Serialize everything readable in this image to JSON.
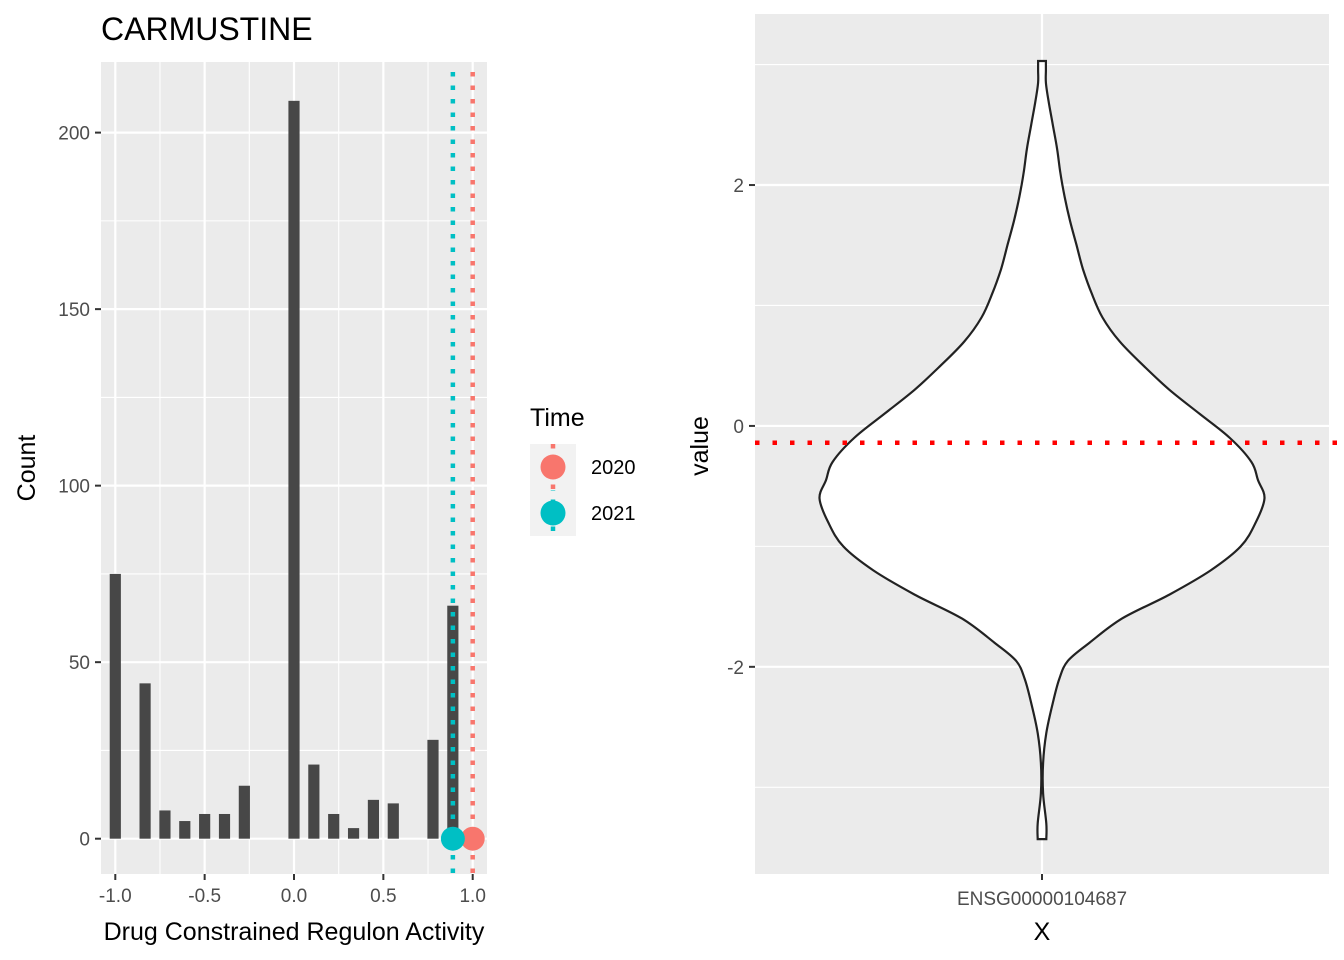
{
  "chart_data": [
    {
      "type": "bar",
      "title": "CARMUSTINE",
      "xlabel": "Drug Constrained Regulon Activity",
      "ylabel": "Count",
      "xlim": [
        -1.08,
        1.08
      ],
      "ylim": [
        -10,
        220
      ],
      "xticks": [
        -1.0,
        -0.5,
        0.0,
        0.5,
        1.0
      ],
      "xtick_labels": [
        "-1.0",
        "-0.5",
        "0.0",
        "0.5",
        "1.0"
      ],
      "yticks": [
        0,
        50,
        100,
        150,
        200
      ],
      "ytick_labels": [
        "0",
        "50",
        "100",
        "150",
        "200"
      ],
      "grid": true,
      "bar_color": "#474747",
      "bar_width": 0.0625,
      "x": [
        -1.0,
        -0.8667,
        -0.7333,
        -0.6,
        -0.4667,
        -0.3333,
        -0.2,
        -0.0667,
        0.0667,
        0.2,
        0.3333,
        0.4667,
        0.6,
        0.7333,
        0.8667,
        1.0
      ],
      "bars_x": [
        -1.0,
        -0.8333,
        -0.7222,
        -0.6111,
        -0.5,
        -0.3889,
        -0.2778,
        0.0,
        0.1111,
        0.2222,
        0.3333,
        0.4444,
        0.5556,
        0.6667,
        0.7778,
        0.8889,
        1.0
      ],
      "bars_y": [
        75,
        44,
        8,
        5,
        7,
        7,
        15,
        209,
        21,
        7,
        3,
        11,
        10,
        0,
        28,
        66,
        0
      ],
      "legend": {
        "title": "Time",
        "placement": "right",
        "entries": [
          {
            "label": "2020",
            "color": "#F8766D"
          },
          {
            "label": "2021",
            "color": "#00BFC4"
          }
        ]
      },
      "markers": [
        {
          "series": "2020",
          "x": 1.0,
          "y": 0,
          "color": "#F8766D"
        },
        {
          "series": "2021",
          "x": 0.889,
          "y": 0,
          "color": "#00BFC4"
        }
      ],
      "vlines": [
        {
          "series": "2020",
          "x": 1.0,
          "color": "#F8766D",
          "style": "dotted"
        },
        {
          "series": "2021",
          "x": 0.889,
          "color": "#00BFC4",
          "style": "dotted"
        }
      ]
    },
    {
      "type": "violin",
      "xlabel": "X",
      "ylabel": "value",
      "category": "ENSG00000104687",
      "ylim": [
        -3.72,
        3.42
      ],
      "yticks": [
        -2,
        0,
        2
      ],
      "ytick_labels": [
        "-2",
        "0",
        "2"
      ],
      "grid": true,
      "hline": {
        "y": -0.14,
        "color": "#FF0000",
        "style": "dotted"
      },
      "violin_range": [
        -3.43,
        3.03
      ],
      "density_profile": [
        [
          -3.43,
          0.02
        ],
        [
          -3.3,
          0.02
        ],
        [
          -3.05,
          0.005
        ],
        [
          -2.8,
          0.005
        ],
        [
          -2.55,
          0.02
        ],
        [
          -2.3,
          0.05
        ],
        [
          -2.1,
          0.08
        ],
        [
          -1.95,
          0.12
        ],
        [
          -1.8,
          0.22
        ],
        [
          -1.6,
          0.37
        ],
        [
          -1.4,
          0.59
        ],
        [
          -1.2,
          0.78
        ],
        [
          -1.0,
          0.92
        ],
        [
          -0.8,
          0.99
        ],
        [
          -0.6,
          1.03
        ],
        [
          -0.45,
          1.0
        ],
        [
          -0.3,
          0.97
        ],
        [
          -0.1,
          0.87
        ],
        [
          0.1,
          0.73
        ],
        [
          0.3,
          0.59
        ],
        [
          0.5,
          0.47
        ],
        [
          0.7,
          0.36
        ],
        [
          0.9,
          0.28
        ],
        [
          1.1,
          0.23
        ],
        [
          1.3,
          0.19
        ],
        [
          1.5,
          0.16
        ],
        [
          1.7,
          0.13
        ],
        [
          1.9,
          0.105
        ],
        [
          2.1,
          0.085
        ],
        [
          2.3,
          0.07
        ],
        [
          2.5,
          0.05
        ],
        [
          2.7,
          0.03
        ],
        [
          2.85,
          0.018
        ],
        [
          2.95,
          0.018
        ],
        [
          3.03,
          0.018
        ]
      ]
    }
  ]
}
